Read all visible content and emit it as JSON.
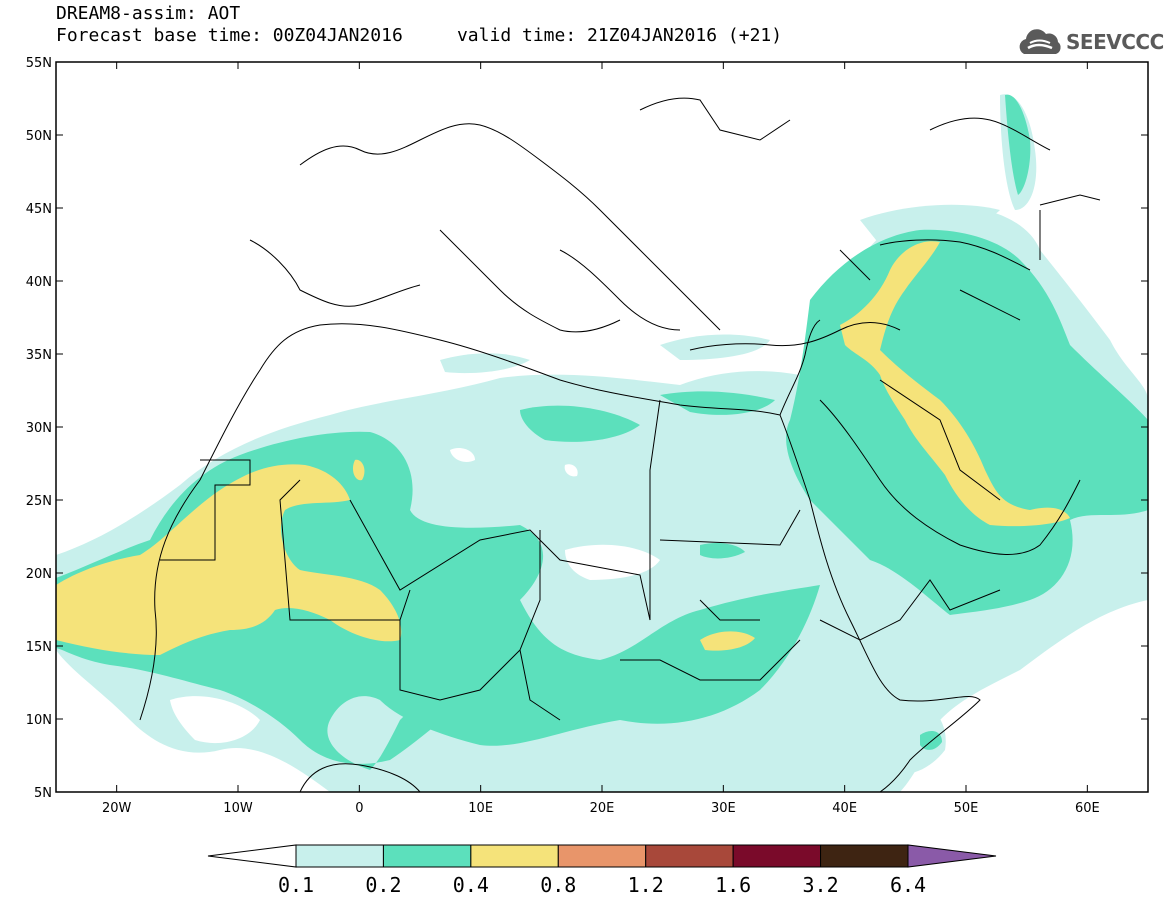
{
  "header": {
    "line1": "DREAM8-assim: AOT",
    "line2": "Forecast base time: 00Z04JAN2016     valid time: 21Z04JAN2016 (+21)"
  },
  "logo": {
    "text": "SEEVCCC",
    "icon": "cloud-icon",
    "color": "#5a5a5a"
  },
  "map": {
    "lon_range": [
      -25,
      65
    ],
    "lat_range": [
      5,
      55
    ],
    "lat_ticks": [
      "55N",
      "50N",
      "45N",
      "40N",
      "35N",
      "30N",
      "25N",
      "20N",
      "15N",
      "10N",
      "5N"
    ],
    "lon_ticks": [
      "20W",
      "10W",
      "0",
      "10E",
      "20E",
      "30E",
      "40E",
      "50E",
      "60E"
    ]
  },
  "colorbar": {
    "labels": [
      "0.1",
      "0.2",
      "0.4",
      "0.8",
      "1.2",
      "1.6",
      "3.2",
      "6.4"
    ],
    "colors": [
      "#c8f0ec",
      "#5ce0bc",
      "#f5e37a",
      "#e8956a",
      "#a8483a",
      "#7a0a2a",
      "#3e2412",
      "#8a5aa8"
    ]
  }
}
